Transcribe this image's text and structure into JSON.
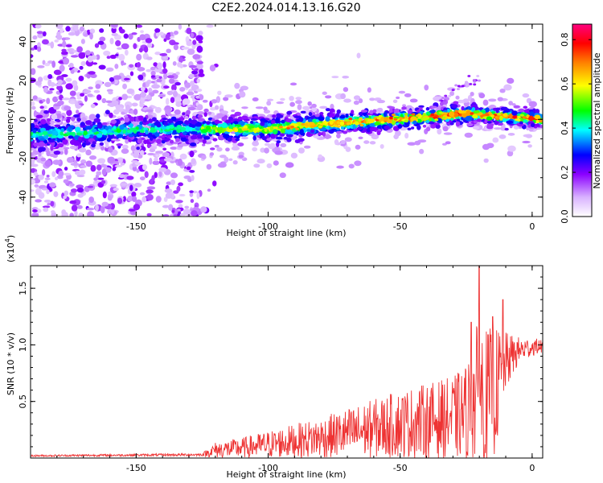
{
  "title": "C2E2.2024.014.13.16.G20",
  "chart_data": [
    {
      "type": "heatmap",
      "xlabel": "Height of straight line (km)",
      "ylabel": "Frequency (Hz)",
      "xlim": [
        -190,
        4
      ],
      "ylim": [
        -50,
        49
      ],
      "xticks": [
        -150,
        -100,
        -50,
        0
      ],
      "yticks": [
        -40,
        -20,
        0,
        20,
        40
      ],
      "colorbar": {
        "label": "Normalized spectral amplitude",
        "range": [
          0,
          0.87
        ],
        "ticks": [
          0.0,
          0.2,
          0.4,
          0.6,
          0.8
        ],
        "colors": [
          "#ffffff",
          "#8b00ff",
          "#0000ff",
          "#00ffff",
          "#00ff00",
          "#ffff00",
          "#ff8000",
          "#ff0000",
          "#ff0080"
        ]
      },
      "band": {
        "x": [
          -190,
          -170,
          -150,
          -125,
          -100,
          -75,
          -50,
          -25,
          4
        ],
        "center_hz": [
          -8,
          -7,
          -5,
          -5,
          -5,
          -2,
          0,
          3,
          0
        ],
        "width_hz": [
          8,
          7,
          7,
          6,
          6,
          6,
          5,
          5,
          4
        ]
      },
      "noise_region_x": [
        -190,
        -125
      ],
      "faint_trace": {
        "x": [
          -35,
          -20
        ],
        "y": [
          10,
          22
        ]
      }
    },
    {
      "type": "line",
      "xlabel": "Height of straight line (km)",
      "ylabel": "SNR (10 * v/v)",
      "exponent_label": "(x10",
      "exponent_value": "4",
      "exponent_close": ")",
      "xlim": [
        -190,
        4
      ],
      "ylim": [
        0,
        17000
      ],
      "xticks": [
        -150,
        -100,
        -50,
        0
      ],
      "yticks": [
        0.5,
        1.0,
        1.5
      ],
      "color": "#ee3333",
      "envelope": {
        "x": [
          -190,
          -125,
          -120,
          -110,
          -100,
          -80,
          -60,
          -50,
          -40,
          -30,
          -25,
          -22,
          -20,
          -18,
          -15,
          -12,
          -10,
          -5,
          0,
          4
        ],
        "mean": [
          200,
          300,
          700,
          900,
          1200,
          1800,
          2600,
          3000,
          3300,
          3600,
          4000,
          5000,
          5500,
          5000,
          5500,
          7000,
          8500,
          9500,
          9800,
          9900
        ],
        "amp": [
          80,
          120,
          700,
          900,
          1200,
          1800,
          2600,
          3000,
          3300,
          3600,
          4300,
          5500,
          7500,
          6500,
          6000,
          4500,
          2600,
          1200,
          800,
          600
        ]
      },
      "peaks": [
        {
          "x": -20,
          "y": 17000
        },
        {
          "x": -23,
          "y": 12000
        },
        {
          "x": -15,
          "y": 12500
        },
        {
          "x": -11,
          "y": 14000
        }
      ]
    }
  ]
}
